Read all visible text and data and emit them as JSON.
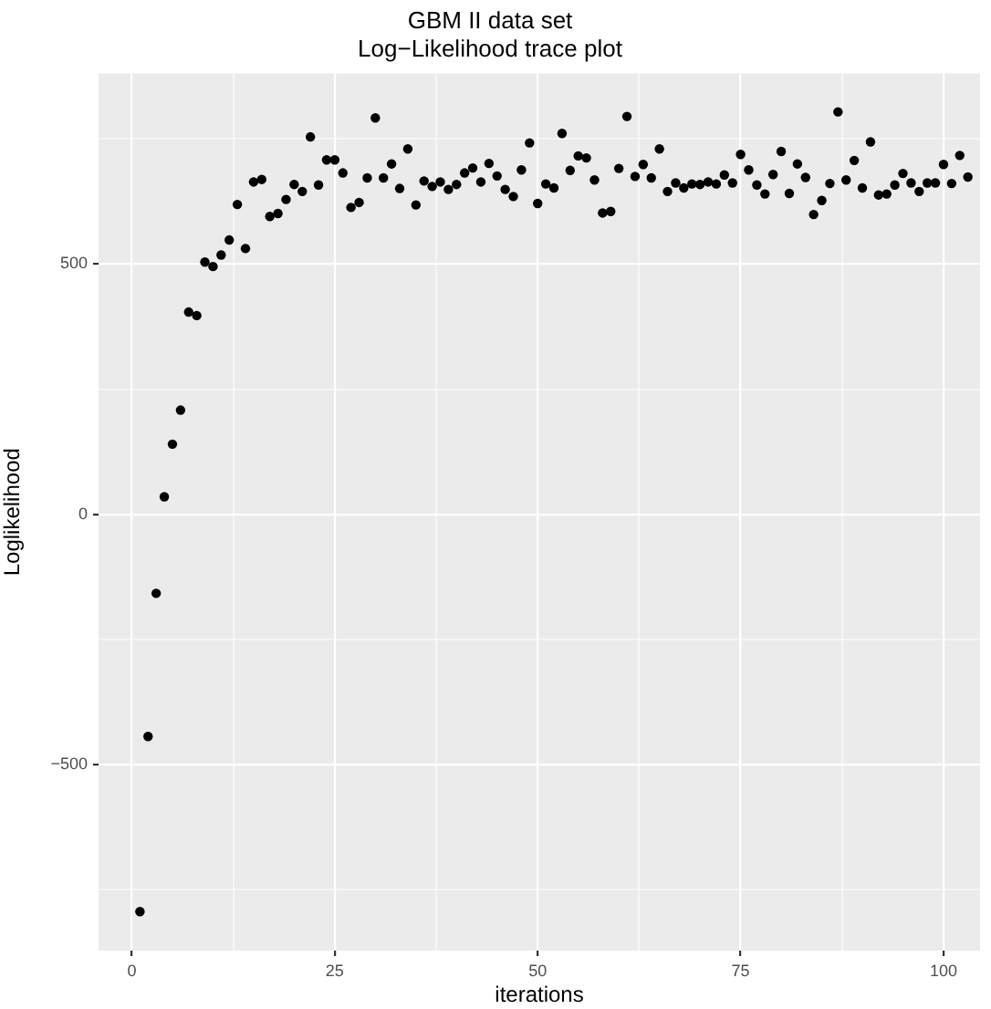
{
  "chart_data": {
    "type": "scatter",
    "title": [
      "GBM II data set",
      "Log−Likelihood trace plot"
    ],
    "xlabel": "iterations",
    "ylabel": "Loglikelihood",
    "x": [
      1,
      2,
      3,
      4,
      5,
      6,
      7,
      8,
      9,
      10,
      11,
      12,
      13,
      14,
      15,
      16,
      17,
      18,
      19,
      20,
      21,
      22,
      23,
      24,
      25,
      26,
      27,
      28,
      29,
      30,
      31,
      32,
      33,
      34,
      35,
      36,
      37,
      38,
      39,
      40,
      41,
      42,
      43,
      44,
      45,
      46,
      47,
      48,
      49,
      50,
      51,
      52,
      53,
      54,
      55,
      56,
      57,
      58,
      59,
      60,
      61,
      62,
      63,
      64,
      65,
      66,
      67,
      68,
      69,
      70,
      71,
      72,
      73,
      74,
      75,
      76,
      77,
      78,
      79,
      80,
      81,
      82,
      83,
      84,
      85,
      86,
      87,
      88,
      89,
      90,
      91,
      92,
      93,
      94,
      95,
      96,
      97,
      98,
      99,
      100,
      101,
      102,
      103
    ],
    "series": [
      {
        "color": "#000000",
        "values": [
          -794,
          -444,
          -158,
          35,
          140,
          208,
          404,
          397,
          504,
          495,
          518,
          548,
          619,
          531,
          664,
          669,
          595,
          601,
          629,
          659,
          645,
          754,
          658,
          708,
          708,
          682,
          613,
          623,
          672,
          792,
          672,
          700,
          651,
          730,
          618,
          666,
          655,
          664,
          649,
          659,
          682,
          692,
          664,
          701,
          676,
          649,
          635,
          688,
          742,
          621,
          660,
          652,
          761,
          687,
          716,
          712,
          668,
          602,
          605,
          691,
          795,
          675,
          699,
          672,
          730,
          645,
          662,
          652,
          660,
          659,
          664,
          660,
          678,
          662,
          719,
          688,
          658,
          640,
          679,
          725,
          641,
          700,
          673,
          599,
          627,
          661,
          804,
          668,
          707,
          652,
          744,
          638,
          640,
          658,
          681,
          662,
          645,
          662,
          662,
          699,
          661,
          717,
          674
        ]
      }
    ],
    "xlim": [
      -4.1,
      104.5
    ],
    "ylim": [
      -872,
      881
    ],
    "xticks": [
      0,
      {
        "value": 12.5,
        "label": null
      },
      25,
      {
        "value": 37.5,
        "label": null
      },
      50,
      {
        "value": 62.5,
        "label": null
      },
      75,
      {
        "value": 87.5,
        "label": null
      },
      100
    ],
    "yticks": [
      {
        "value": -750,
        "label": null
      },
      {
        "value": -500,
        "label": "−500"
      },
      {
        "value": -250,
        "label": null
      },
      0,
      {
        "value": 250,
        "label": null
      },
      500,
      {
        "value": 750,
        "label": null
      }
    ],
    "grid": true,
    "marker": "circle",
    "legend": false
  }
}
